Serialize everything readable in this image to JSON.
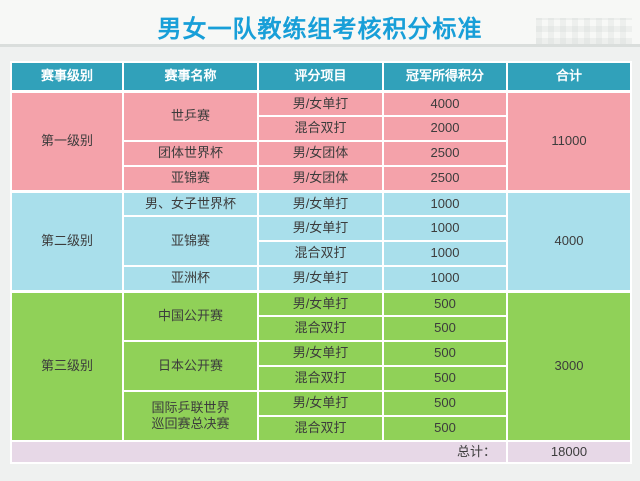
{
  "page": {
    "title": "男女一队教练组考核积分标准"
  },
  "colors": {
    "title_text": "#189FD8",
    "header_bg": "#31A1BA",
    "level1_bg": "#F4A2AA",
    "level2_bg": "#A9DFEB",
    "level3_bg": "#90D158",
    "footer_bg": "#E7D8E7",
    "page_bg": "#EFF1F0"
  },
  "table": {
    "headers": [
      "赛事级别",
      "赛事名称",
      "评分项目",
      "冠军所得积分",
      "合计"
    ],
    "groups": [
      {
        "level": "第一级别",
        "total": "11000",
        "events": [
          {
            "name": "世乒赛",
            "items": [
              {
                "item": "男/女单打",
                "points": "4000"
              },
              {
                "item": "混合双打",
                "points": "2000"
              }
            ]
          },
          {
            "name": "团体世界杯",
            "items": [
              {
                "item": "男/女团体",
                "points": "2500"
              }
            ]
          },
          {
            "name": "亚锦赛",
            "items": [
              {
                "item": "男/女团体",
                "points": "2500"
              }
            ]
          }
        ]
      },
      {
        "level": "第二级别",
        "total": "4000",
        "events": [
          {
            "name": "男、女子世界杯",
            "items": [
              {
                "item": "男/女单打",
                "points": "1000"
              }
            ]
          },
          {
            "name": "亚锦赛",
            "items": [
              {
                "item": "男/女单打",
                "points": "1000"
              },
              {
                "item": "混合双打",
                "points": "1000"
              }
            ]
          },
          {
            "name": "亚洲杯",
            "items": [
              {
                "item": "男/女单打",
                "points": "1000"
              }
            ]
          }
        ]
      },
      {
        "level": "第三级别",
        "total": "3000",
        "events": [
          {
            "name": "中国公开赛",
            "items": [
              {
                "item": "男/女单打",
                "points": "500"
              },
              {
                "item": "混合双打",
                "points": "500"
              }
            ]
          },
          {
            "name": "日本公开赛",
            "items": [
              {
                "item": "男/女单打",
                "points": "500"
              },
              {
                "item": "混合双打",
                "points": "500"
              }
            ]
          },
          {
            "name": "国际乒联世界巡回赛总决赛",
            "items": [
              {
                "item": "男/女单打",
                "points": "500"
              },
              {
                "item": "混合双打",
                "points": "500"
              }
            ]
          }
        ]
      }
    ],
    "footer": {
      "label": "总计：",
      "value": "18000"
    }
  }
}
